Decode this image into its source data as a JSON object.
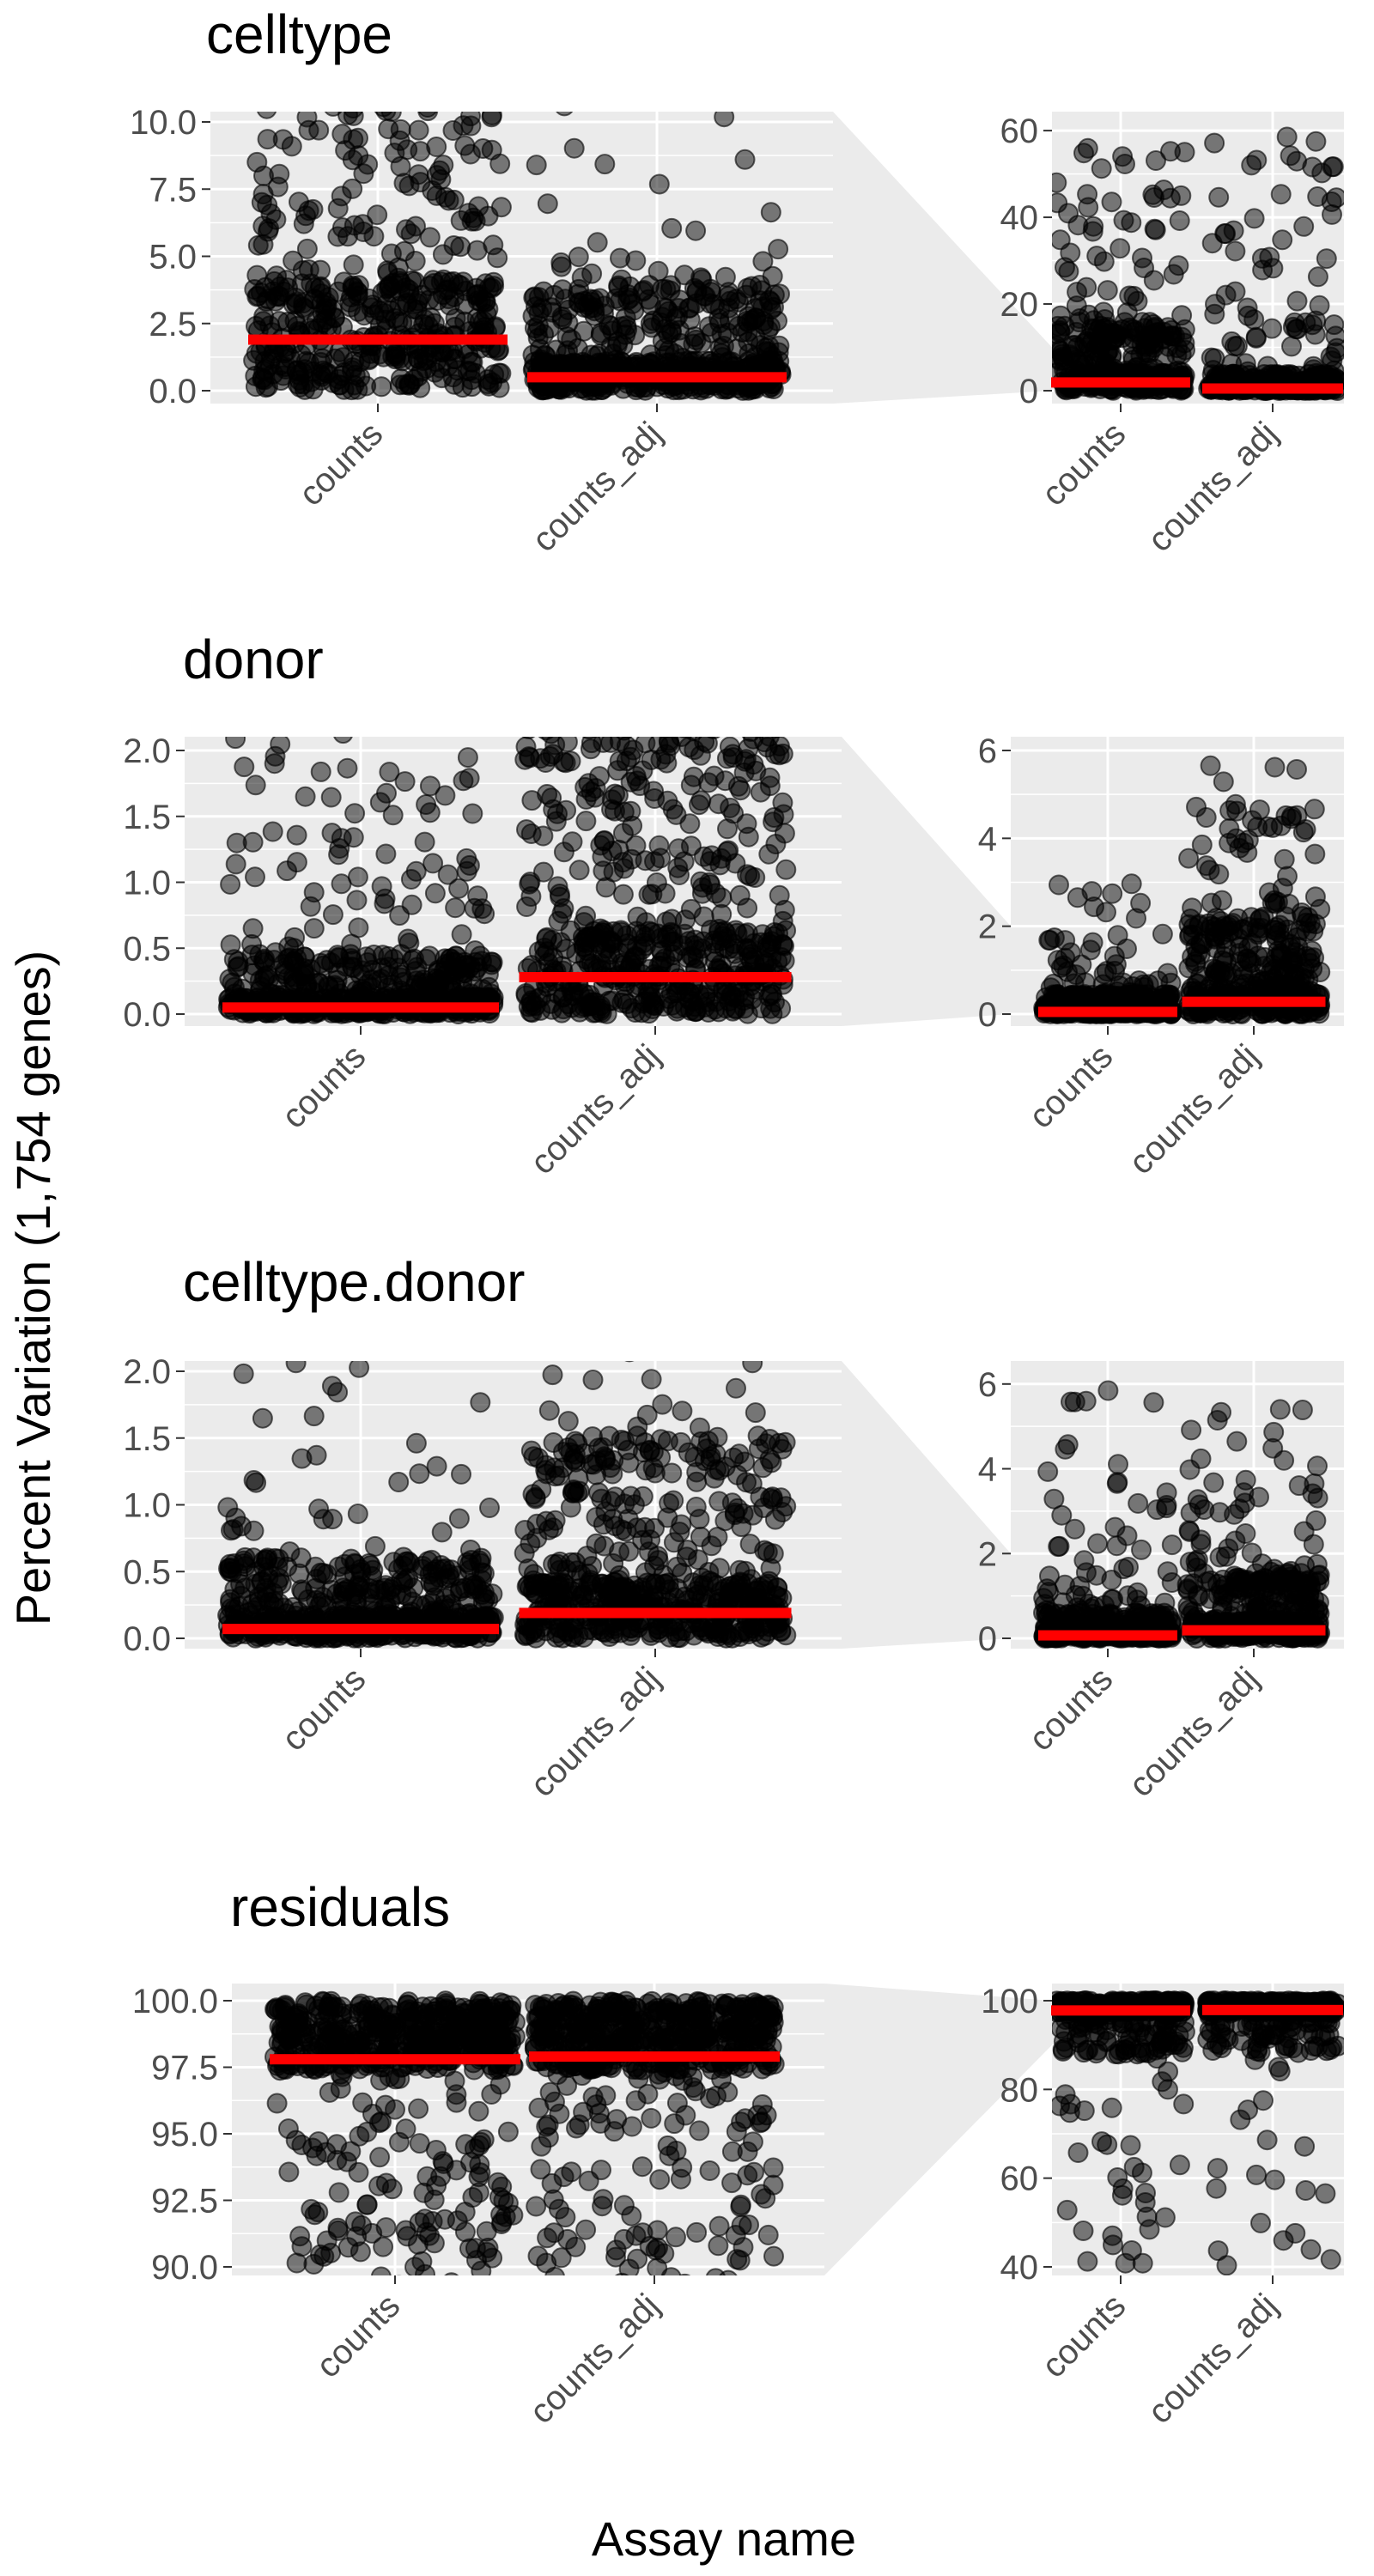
{
  "axes": {
    "ylabel": "Percent Variation (1,754 genes)",
    "xlabel": "Assay name"
  },
  "colors": {
    "panel_bg": "#ebebeb",
    "grid": "#ffffff",
    "points": "#000000",
    "median_line": "#ff0000",
    "zoom_wedge": "#ebebeb",
    "tick_text": "#4d4d4d"
  },
  "chart_data": [
    {
      "type": "scatter",
      "subtype": "jitter strip plot with median line, zoomed view + full-range view",
      "title": "celltype",
      "categories": [
        "counts",
        "counts_adj"
      ],
      "zoom": {
        "ylim": [
          0,
          10
        ],
        "ticks": [
          0,
          2.5,
          5,
          7.5,
          10
        ],
        "tick_labels": [
          "0.0",
          "2.5",
          "5.0",
          "7.5",
          "10.0"
        ]
      },
      "full": {
        "ylim": [
          0,
          62
        ],
        "ticks": [
          0,
          20,
          40,
          60
        ],
        "tick_labels": [
          "0",
          "20",
          "40",
          "60"
        ]
      },
      "series": [
        {
          "category": "counts",
          "median": 1.9,
          "max": 60,
          "points_shown": 1754
        },
        {
          "category": "counts_adj",
          "median": 0.5,
          "max": 59,
          "points_shown": 1754
        }
      ]
    },
    {
      "type": "scatter",
      "subtype": "jitter strip plot with median line, zoomed view + full-range view",
      "title": "donor",
      "categories": [
        "counts",
        "counts_adj"
      ],
      "zoom": {
        "ylim": [
          0,
          2
        ],
        "ticks": [
          0,
          0.5,
          1,
          1.5,
          2
        ],
        "tick_labels": [
          "0.0",
          "0.5",
          "1.0",
          "1.5",
          "2.0"
        ]
      },
      "full": {
        "ylim": [
          0,
          6
        ],
        "ticks": [
          0,
          2,
          4,
          6
        ],
        "tick_labels": [
          "0",
          "2",
          "4",
          "6"
        ]
      },
      "series": [
        {
          "category": "counts",
          "median": 0.05,
          "max": 3.0,
          "points_shown": 1754
        },
        {
          "category": "counts_adj",
          "median": 0.28,
          "max": 5.7,
          "points_shown": 1754
        }
      ]
    },
    {
      "type": "scatter",
      "subtype": "jitter strip plot with median line, zoomed view + full-range view",
      "title": "celltype.donor",
      "categories": [
        "counts",
        "counts_adj"
      ],
      "zoom": {
        "ylim": [
          0,
          2
        ],
        "ticks": [
          0,
          0.5,
          1,
          1.5,
          2
        ],
        "tick_labels": [
          "0.0",
          "0.5",
          "1.0",
          "1.5",
          "2.0"
        ]
      },
      "full": {
        "ylim": [
          0,
          6.3
        ],
        "ticks": [
          0,
          2,
          4,
          6
        ],
        "tick_labels": [
          "0",
          "2",
          "4",
          "6"
        ]
      },
      "series": [
        {
          "category": "counts",
          "median": 0.07,
          "max": 6.2,
          "points_shown": 1754
        },
        {
          "category": "counts_adj",
          "median": 0.19,
          "max": 5.4,
          "points_shown": 1754
        }
      ]
    },
    {
      "type": "scatter",
      "subtype": "jitter strip plot with median line, zoomed view + full-range view",
      "title": "residuals",
      "categories": [
        "counts",
        "counts_adj"
      ],
      "zoom": {
        "ylim": [
          90,
          100
        ],
        "ticks": [
          90,
          92.5,
          95,
          97.5,
          100
        ],
        "tick_labels": [
          "90.0",
          "92.5",
          "95.0",
          "97.5",
          "100.0"
        ]
      },
      "full": {
        "ylim": [
          40,
          100
        ],
        "ticks": [
          40,
          60,
          80,
          100
        ],
        "tick_labels": [
          "40",
          "60",
          "80",
          "100"
        ]
      },
      "series": [
        {
          "category": "counts",
          "median": 97.8,
          "min": 40,
          "points_shown": 1754
        },
        {
          "category": "counts_adj",
          "median": 97.9,
          "min": 40,
          "points_shown": 1754
        }
      ]
    }
  ]
}
